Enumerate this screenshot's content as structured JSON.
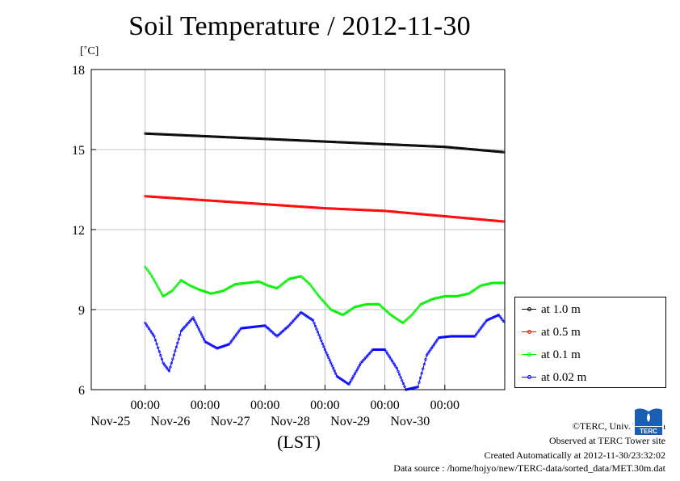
{
  "title": "Soil Temperature / 2012-11-30",
  "chart_data": {
    "type": "line",
    "title": "Soil Temperature / 2012-11-30",
    "xlabel": "(LST)",
    "ylabel": "[˚C]",
    "ylim": [
      6,
      18
    ],
    "yticks": [
      6,
      9,
      12,
      15,
      18
    ],
    "x_day_range": [
      0,
      6
    ],
    "x_ticks": [
      {
        "label_time": "00:00",
        "label_date": "Nov-25"
      },
      {
        "label_time": "00:00",
        "label_date": "Nov-26"
      },
      {
        "label_time": "00:00",
        "label_date": "Nov-27"
      },
      {
        "label_time": "00:00",
        "label_date": "Nov-28"
      },
      {
        "label_time": "00:00",
        "label_date": "Nov-29"
      },
      {
        "label_time": "00:00",
        "label_date": "Nov-30"
      }
    ],
    "grid": true,
    "legend_position": "right, outside plot",
    "series": [
      {
        "name": "at 1.0 m",
        "color": "#000000",
        "x": [
          0,
          1,
          2,
          3,
          4,
          5,
          6
        ],
        "y": [
          15.6,
          15.5,
          15.4,
          15.3,
          15.2,
          15.1,
          14.9
        ]
      },
      {
        "name": "at 0.5 m",
        "color": "#ff0000",
        "x": [
          0,
          1,
          2,
          3,
          4,
          5,
          6
        ],
        "y": [
          13.25,
          13.1,
          12.95,
          12.8,
          12.7,
          12.5,
          12.3
        ]
      },
      {
        "name": "at 0.1 m",
        "color": "#00ee00",
        "x": [
          0,
          0.1,
          0.2,
          0.3,
          0.45,
          0.6,
          0.75,
          0.9,
          1.1,
          1.3,
          1.5,
          1.7,
          1.9,
          2.05,
          2.2,
          2.4,
          2.6,
          2.75,
          2.9,
          3.1,
          3.3,
          3.5,
          3.7,
          3.9,
          4.1,
          4.3,
          4.45,
          4.6,
          4.8,
          5.0,
          5.2,
          5.4,
          5.6,
          5.8,
          6.0
        ],
        "y": [
          10.6,
          10.3,
          9.9,
          9.5,
          9.7,
          10.1,
          9.9,
          9.75,
          9.6,
          9.7,
          9.95,
          10.0,
          10.05,
          9.9,
          9.8,
          10.15,
          10.25,
          9.95,
          9.5,
          9.0,
          8.8,
          9.1,
          9.2,
          9.2,
          8.8,
          8.5,
          8.8,
          9.2,
          9.4,
          9.5,
          9.5,
          9.6,
          9.9,
          10.0,
          10.0
        ]
      },
      {
        "name": "at 0.02 m",
        "color": "#0000ff",
        "x": [
          0,
          0.15,
          0.3,
          0.4,
          0.6,
          0.8,
          1.0,
          1.2,
          1.4,
          1.6,
          1.8,
          2.0,
          2.2,
          2.4,
          2.6,
          2.8,
          3.0,
          3.2,
          3.4,
          3.6,
          3.8,
          4.0,
          4.2,
          4.35,
          4.55,
          4.7,
          4.9,
          5.1,
          5.3,
          5.5,
          5.7,
          5.9,
          6.0
        ],
        "y": [
          8.5,
          8.0,
          7.0,
          6.7,
          8.2,
          8.7,
          7.8,
          7.55,
          7.7,
          8.3,
          8.35,
          8.4,
          8.0,
          8.4,
          8.9,
          8.6,
          7.5,
          6.5,
          6.2,
          7.0,
          7.5,
          7.5,
          6.8,
          6.0,
          6.1,
          7.3,
          7.95,
          8.0,
          8.0,
          8.0,
          8.6,
          8.8,
          8.5
        ]
      }
    ]
  },
  "footer": {
    "copyright": "©TERC, Univ. Tsukuba",
    "observed": "Observed at TERC Tower site",
    "created": "Created Automatically at 2012-11-30/23:32:02",
    "source": "Data source : /home/hojyo/new/TERC-data/sorted_data/MET.30m.dat"
  },
  "logo_text": "TERC"
}
